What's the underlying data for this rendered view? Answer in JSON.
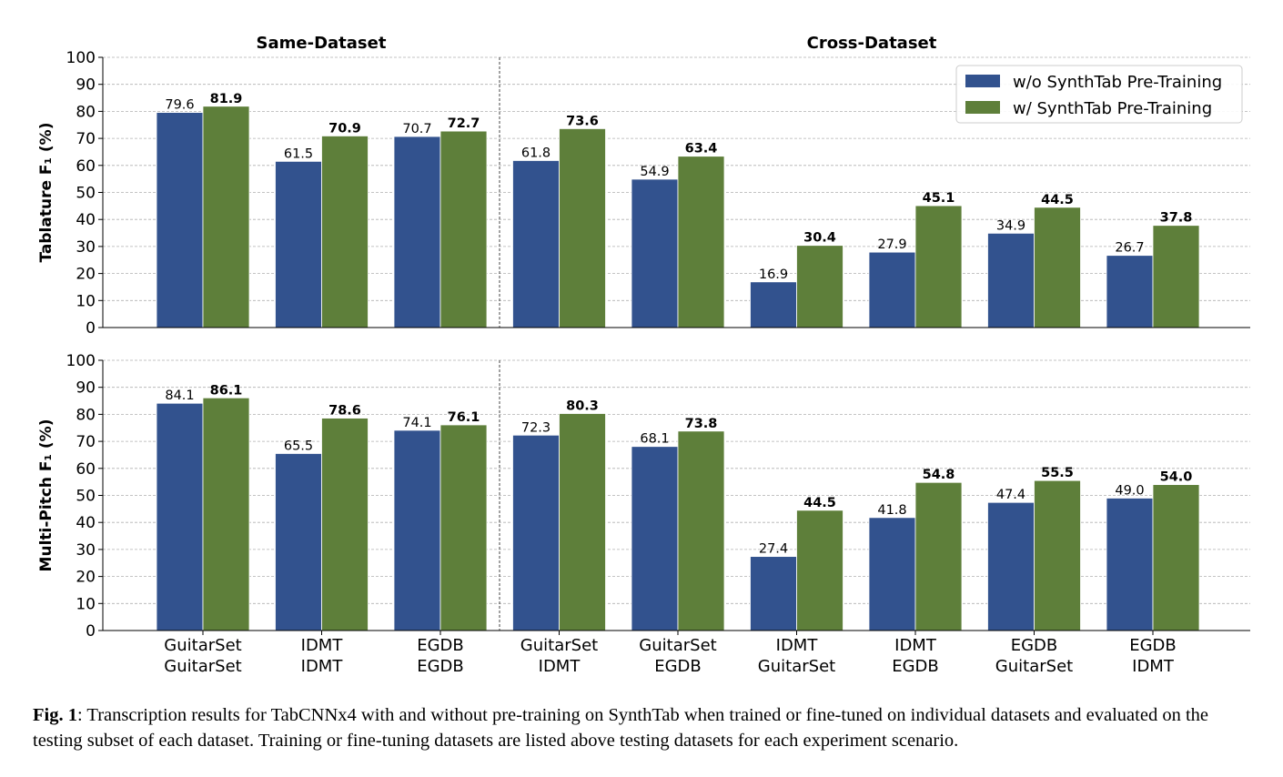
{
  "chart_data": {
    "type": "bar",
    "group_titles": [
      "Same-Dataset",
      "Cross-Dataset"
    ],
    "categories": [
      {
        "train": "GuitarSet",
        "test": "GuitarSet"
      },
      {
        "train": "IDMT",
        "test": "IDMT"
      },
      {
        "train": "EGDB",
        "test": "EGDB"
      },
      {
        "train": "GuitarSet",
        "test": "IDMT"
      },
      {
        "train": "GuitarSet",
        "test": "EGDB"
      },
      {
        "train": "IDMT",
        "test": "GuitarSet"
      },
      {
        "train": "IDMT",
        "test": "EGDB"
      },
      {
        "train": "EGDB",
        "test": "GuitarSet"
      },
      {
        "train": "EGDB",
        "test": "IDMT"
      }
    ],
    "legend": {
      "placement": "top-right",
      "entries": [
        "w/o SynthTab Pre-Training",
        "w/ SynthTab Pre-Training"
      ]
    },
    "colors": {
      "without": "#32528e",
      "with": "#5e7f3a"
    },
    "ylim": [
      0,
      100
    ],
    "yticks": [
      0,
      10,
      20,
      30,
      40,
      50,
      60,
      70,
      80,
      90,
      100
    ],
    "panels": [
      {
        "ylabel": "Tablature F₁ (%)",
        "series": [
          {
            "name": "w/o SynthTab Pre-Training",
            "values": [
              79.6,
              61.5,
              70.7,
              61.8,
              54.9,
              16.9,
              27.9,
              34.9,
              26.7
            ],
            "labels": [
              "79.6",
              "61.5",
              "70.7",
              "61.8",
              "54.9",
              "16.9",
              "27.9",
              "34.9",
              "26.7"
            ]
          },
          {
            "name": "w/ SynthTab Pre-Training",
            "values": [
              81.9,
              70.9,
              72.7,
              73.6,
              63.4,
              30.4,
              45.1,
              44.5,
              37.8
            ],
            "labels": [
              "81.9",
              "70.9",
              "72.7",
              "73.6",
              "63.4",
              "30.4",
              "45.1",
              "44.5",
              "37.8"
            ]
          }
        ]
      },
      {
        "ylabel": "Multi-Pitch F₁ (%)",
        "series": [
          {
            "name": "w/o SynthTab Pre-Training",
            "values": [
              84.1,
              65.5,
              74.1,
              72.3,
              68.1,
              27.4,
              41.8,
              47.4,
              49.0
            ],
            "labels": [
              "84.1",
              "65.5",
              "74.1",
              "72.3",
              "68.1",
              "27.4",
              "41.8",
              "47.4",
              "49.0"
            ]
          },
          {
            "name": "w/ SynthTab Pre-Training",
            "values": [
              86.1,
              78.6,
              76.1,
              80.3,
              73.8,
              44.5,
              54.8,
              55.5,
              54.0
            ],
            "labels": [
              "86.1",
              "78.6",
              "76.1",
              "80.3",
              "73.8",
              "44.5",
              "54.8",
              "55.5",
              "54.0"
            ]
          }
        ]
      }
    ]
  },
  "caption": {
    "label": "Fig. 1",
    "text": ": Transcription results for TabCNNx4 with and without pre-training on SynthTab when trained or fine-tuned on individual datasets and evaluated on the testing subset of each dataset. Training or fine-tuning datasets are listed above testing datasets for each experiment scenario."
  }
}
